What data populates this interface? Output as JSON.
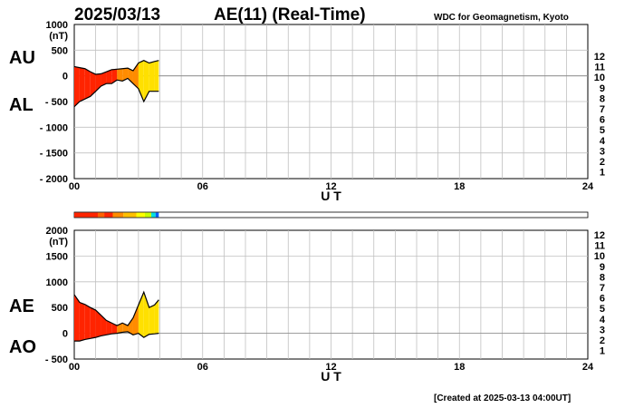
{
  "header": {
    "date": "2025/03/13",
    "title": "AE(11) (Real-Time)",
    "source": "WDC for Geomagnetism, Kyoto"
  },
  "footer": {
    "created": "[Created at 2025-03-13 04:00UT]"
  },
  "colors": {
    "scale": [
      "#c0c0c0",
      "#808080",
      "#000000",
      "#cc00cc",
      "#0000ff",
      "#0080ff",
      "#00cccc",
      "#00e000",
      "#a0ff00",
      "#ffff00",
      "#ffa000",
      "#ff4000",
      "#ff0040"
    ]
  },
  "legend": {
    "hours": [
      "12",
      "11",
      "10",
      "9",
      "8",
      "7",
      "6",
      "5",
      "4",
      "3",
      "2",
      "1"
    ]
  },
  "strip": {
    "segments": [
      {
        "from": 0.0,
        "to": 1.1,
        "color": "#ff2400"
      },
      {
        "from": 1.1,
        "to": 1.4,
        "color": "#ff6000"
      },
      {
        "from": 1.4,
        "to": 1.8,
        "color": "#ff2400"
      },
      {
        "from": 1.8,
        "to": 2.3,
        "color": "#ff8c00"
      },
      {
        "from": 2.3,
        "to": 2.9,
        "color": "#ffc000"
      },
      {
        "from": 2.9,
        "to": 3.3,
        "color": "#ffff00"
      },
      {
        "from": 3.3,
        "to": 3.6,
        "color": "#c8ff00"
      },
      {
        "from": 3.6,
        "to": 3.8,
        "color": "#00e0e0"
      },
      {
        "from": 3.8,
        "to": 3.95,
        "color": "#0060ff"
      }
    ]
  },
  "chart_data": [
    {
      "type": "area",
      "title": "AU / AL",
      "xlabel": "U T",
      "ylabel": "(nT)",
      "xlim": [
        0,
        24
      ],
      "ylim": [
        -2000,
        1000
      ],
      "yticks": [
        1000,
        500,
        0,
        -500,
        -1000,
        -1500,
        -2000
      ],
      "ytick_labels": [
        "1000",
        "500",
        "0",
        "- 500",
        "- 1000",
        "- 1500",
        "- 2000"
      ],
      "xticks": [
        0,
        6,
        12,
        18,
        24
      ],
      "xtick_labels": [
        "00",
        "06",
        "12",
        "18",
        "24"
      ],
      "series": [
        {
          "name": "AU",
          "x": [
            0.0,
            0.25,
            0.5,
            0.75,
            1.0,
            1.25,
            1.5,
            1.75,
            2.0,
            2.25,
            2.5,
            2.75,
            3.0,
            3.25,
            3.5,
            3.75,
            3.95
          ],
          "values": [
            180,
            160,
            140,
            80,
            30,
            40,
            80,
            120,
            130,
            140,
            150,
            100,
            250,
            300,
            250,
            280,
            300
          ]
        },
        {
          "name": "AL",
          "x": [
            0.0,
            0.25,
            0.5,
            0.75,
            1.0,
            1.25,
            1.5,
            1.75,
            2.0,
            2.25,
            2.5,
            2.75,
            3.0,
            3.25,
            3.5,
            3.75,
            3.95
          ],
          "values": [
            -600,
            -500,
            -450,
            -400,
            -300,
            -200,
            -150,
            -150,
            -80,
            -100,
            -50,
            -150,
            -250,
            -500,
            -300,
            -300,
            -300
          ]
        }
      ]
    },
    {
      "type": "area",
      "title": "AE / AO",
      "xlabel": "U T",
      "ylabel": "(nT)",
      "xlim": [
        0,
        24
      ],
      "ylim": [
        -500,
        2000
      ],
      "yticks": [
        2000,
        1500,
        1000,
        500,
        0,
        -500
      ],
      "ytick_labels": [
        "2000",
        "1500",
        "1000",
        "500",
        "0",
        "- 500"
      ],
      "xticks": [
        0,
        6,
        12,
        18,
        24
      ],
      "xtick_labels": [
        "00",
        "06",
        "12",
        "18",
        "24"
      ],
      "series": [
        {
          "name": "AE",
          "x": [
            0.0,
            0.25,
            0.5,
            0.75,
            1.0,
            1.25,
            1.5,
            1.75,
            2.0,
            2.25,
            2.5,
            2.75,
            3.0,
            3.25,
            3.5,
            3.75,
            3.95
          ],
          "values": [
            750,
            600,
            560,
            500,
            450,
            350,
            250,
            200,
            150,
            200,
            150,
            300,
            550,
            800,
            500,
            550,
            650
          ]
        },
        {
          "name": "AO",
          "x": [
            0.0,
            0.25,
            0.5,
            0.75,
            1.0,
            1.25,
            1.5,
            1.75,
            2.0,
            2.25,
            2.5,
            2.75,
            3.0,
            3.25,
            3.5,
            3.75,
            3.95
          ],
          "values": [
            -150,
            -150,
            -120,
            -100,
            -80,
            -50,
            -30,
            -10,
            0,
            20,
            30,
            -30,
            0,
            -80,
            -20,
            -10,
            0
          ]
        }
      ]
    }
  ]
}
